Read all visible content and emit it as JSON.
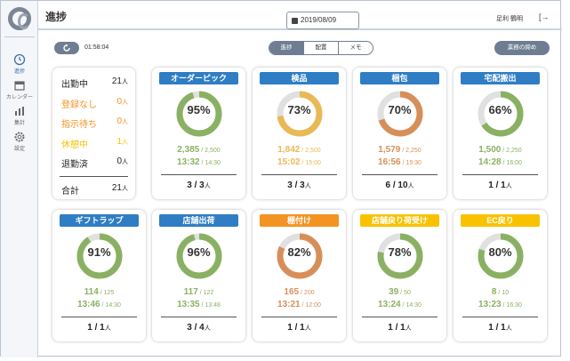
{
  "colors": {
    "blue": "#2f7dc4",
    "orange": "#f39322",
    "yellow": "#f8c200",
    "green": "#8ab163",
    "amber": "#e9b955",
    "terra": "#d78f5a",
    "track": "#e0e0e0"
  },
  "sidebar": {
    "items": [
      {
        "label": "進捗",
        "icon": "clock-icon",
        "active": true
      },
      {
        "label": "カレンダー",
        "icon": "calendar-icon"
      },
      {
        "label": "集計",
        "icon": "chart-icon"
      },
      {
        "label": "設定",
        "icon": "gear-icon"
      }
    ]
  },
  "header": {
    "title": "進捗",
    "date": "2019/08/09",
    "user": "足利 鶴明",
    "logout_icon": "logout-icon"
  },
  "toolbar": {
    "clock": "01:58:04",
    "tabs": [
      "進捗",
      "配置",
      "メモ"
    ],
    "active_tab": 0,
    "cover_button": "業務の締め"
  },
  "summary": {
    "rows": [
      {
        "label": "出勤中",
        "value": "21",
        "unit": "人",
        "color": "#222222"
      },
      {
        "label": "登録なし",
        "value": "0",
        "unit": "人",
        "color": "#f39322"
      },
      {
        "label": "指示待ち",
        "value": "0",
        "unit": "人",
        "color": "#f39322"
      },
      {
        "label": "休憩中",
        "value": "1",
        "unit": "人",
        "color": "#f8c200"
      },
      {
        "label": "退勤済",
        "value": "0",
        "unit": "人",
        "color": "#222222"
      }
    ],
    "total_label": "合計",
    "total_value": "21",
    "total_unit": "人"
  },
  "tasks": [
    {
      "name": "オーダーピック",
      "tag_color": "#2f7dc4",
      "percent": 95,
      "ring": "#8ab163",
      "text_color": "#8ab163",
      "done": "2,385",
      "target": "2,500",
      "eta": "13:32",
      "deadline": "14:30",
      "staff": "3",
      "staff_total": "3"
    },
    {
      "name": "検品",
      "tag_color": "#2f7dc4",
      "percent": 73,
      "ring": "#e9b955",
      "text_color": "#e9b955",
      "done": "1,842",
      "target": "2,500",
      "eta": "15:02",
      "deadline": "15:00",
      "staff": "3",
      "staff_total": "3"
    },
    {
      "name": "梱包",
      "tag_color": "#2f7dc4",
      "percent": 70,
      "ring": "#d78f5a",
      "text_color": "#d78f5a",
      "done": "1,579",
      "target": "2,250",
      "eta": "16:56",
      "deadline": "15:30",
      "staff": "6",
      "staff_total": "10"
    },
    {
      "name": "宅配搬出",
      "tag_color": "#2f7dc4",
      "percent": 66,
      "ring": "#8ab163",
      "text_color": "#8ab163",
      "done": "1,500",
      "target": "2,250",
      "eta": "14:28",
      "deadline": "16:00",
      "staff": "1",
      "staff_total": "1"
    },
    {
      "name": "ギフトラップ",
      "tag_color": "#2f7dc4",
      "percent": 91,
      "ring": "#8ab163",
      "text_color": "#8ab163",
      "done": "114",
      "target": "125",
      "eta": "13:46",
      "deadline": "14:30",
      "staff": "1",
      "staff_total": "1"
    },
    {
      "name": "店舗出荷",
      "tag_color": "#2f7dc4",
      "percent": 96,
      "ring": "#8ab163",
      "text_color": "#8ab163",
      "done": "117",
      "target": "122",
      "eta": "13:35",
      "deadline": "13:48",
      "staff": "3",
      "staff_total": "4"
    },
    {
      "name": "棚付け",
      "tag_color": "#f39322",
      "percent": 82,
      "ring": "#d78f5a",
      "text_color": "#d78f5a",
      "done": "165",
      "target": "200",
      "eta": "13:21",
      "deadline": "12:00",
      "staff": "1",
      "staff_total": "1"
    },
    {
      "name": "店舗戻り荷受け",
      "tag_color": "#f8c200",
      "percent": 78,
      "ring": "#8ab163",
      "text_color": "#8ab163",
      "done": "39",
      "target": "50",
      "eta": "13:24",
      "deadline": "14:30",
      "staff": "1",
      "staff_total": "1"
    },
    {
      "name": "EC戻り",
      "tag_color": "#f8c200",
      "percent": 80,
      "ring": "#8ab163",
      "text_color": "#8ab163",
      "done": "8",
      "target": "10",
      "eta": "13:23",
      "deadline": "16:30",
      "staff": "1",
      "staff_total": "1"
    }
  ]
}
